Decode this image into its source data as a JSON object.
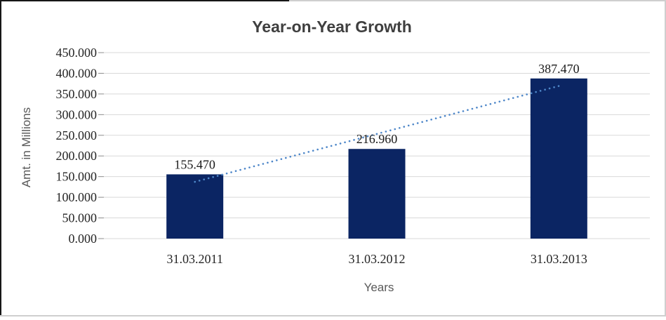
{
  "chart_data": {
    "type": "bar",
    "title": "Year-on-Year Growth",
    "xlabel": "Years",
    "ylabel": "Amt. in Millions",
    "categories": [
      "31.03.2011",
      "31.03.2012",
      "31.03.2013"
    ],
    "values": [
      155.47,
      216.96,
      387.47
    ],
    "data_labels": [
      "155.470",
      "216.960",
      "387.470"
    ],
    "ylim": [
      0,
      450
    ],
    "ytick_step": 50,
    "ytick_labels": [
      "0.000",
      "50.000",
      "100.000",
      "150.000",
      "200.000",
      "250.000",
      "300.000",
      "350.000",
      "400.000",
      "450.000"
    ],
    "grid": true,
    "legend": "none",
    "trendline": {
      "type": "linear",
      "style": "dotted"
    },
    "colors": {
      "bar": "#0b2563",
      "trendline": "#4e87c9",
      "gridline": "#d9d9d9",
      "tick_mark": "#8c8c8c",
      "title_text": "#3f3f3f",
      "axis_title_text": "#595959",
      "tick_text": "#262626",
      "data_label_text": "#1a1a1a"
    }
  }
}
